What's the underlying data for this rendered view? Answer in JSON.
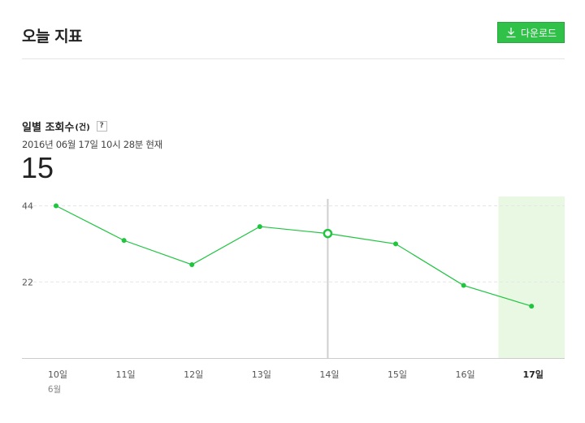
{
  "page": {
    "title": "오늘 지표"
  },
  "toolbar": {
    "download_label": "다운로드"
  },
  "metric": {
    "title": "일별 조회수",
    "unit": "(건)",
    "help": "?",
    "timestamp": "2016년 06월 17일 10시 28분 현재",
    "value": "15"
  },
  "colors": {
    "line": "#1fc43f",
    "highlight": "#e9f8e3",
    "button": "#2fc148"
  },
  "chart_data": {
    "type": "line",
    "title": "",
    "xlabel": "",
    "ylabel": "",
    "categories": [
      "10일",
      "11일",
      "12일",
      "13일",
      "14일",
      "15일",
      "16일",
      "17일"
    ],
    "month_label": "6월",
    "series": [
      {
        "values": [
          44,
          34,
          27,
          38,
          36,
          33,
          21,
          15
        ]
      }
    ],
    "yticks": [
      22,
      44
    ],
    "ylim": [
      0,
      46
    ],
    "highlight_index": 7,
    "selected_index": 4,
    "grid": true
  }
}
